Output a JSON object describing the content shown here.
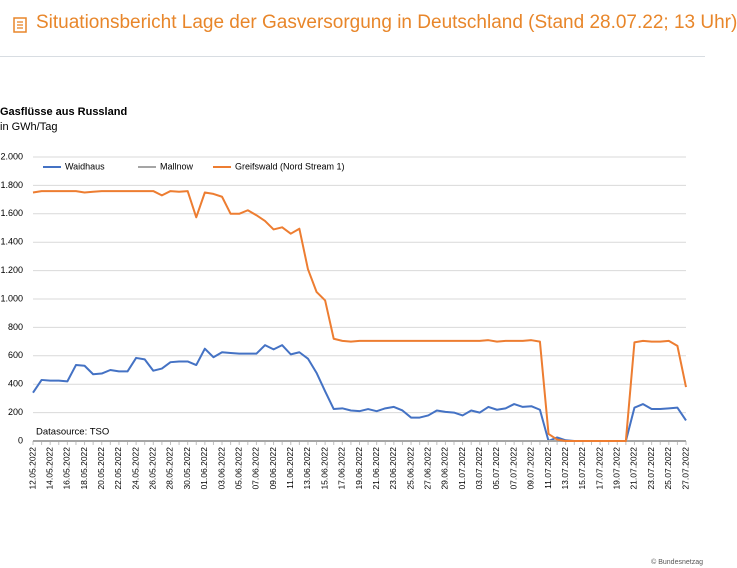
{
  "header": {
    "title": "Situationsbericht Lage der Gasversorgung in Deutschland (Stand 28.07.22; 13 Uhr)"
  },
  "footer": {
    "copyright": "© Bundesnetzag"
  },
  "chart_data": {
    "type": "line",
    "title": "Gasflüsse aus Russland",
    "subtitle": "in GWh/Tag",
    "annotation": "Datasource: TSO",
    "categories": [
      "12.05.2022",
      null,
      "14.05.2022",
      null,
      "16.05.2022",
      null,
      "18.05.2022",
      null,
      "20.05.2022",
      null,
      "22.05.2022",
      null,
      "24.05.2022",
      null,
      "26.05.2022",
      null,
      "28.05.2022",
      null,
      "30.05.2022",
      null,
      "01.06.2022",
      null,
      "03.06.2022",
      null,
      "05.06.2022",
      null,
      "07.06.2022",
      null,
      "09.06.2022",
      null,
      "11.06.2022",
      null,
      "13.06.2022",
      null,
      "15.06.2022",
      null,
      "17.06.2022",
      null,
      "19.06.2022",
      null,
      "21.06.2022",
      null,
      "23.06.2022",
      null,
      "25.06.2022",
      null,
      "27.06.2022",
      null,
      "29.06.2022",
      null,
      "01.07.2022",
      null,
      "03.07.2022",
      null,
      "05.07.2022",
      null,
      "07.07.2022",
      null,
      "09.07.2022",
      null,
      "11.07.2022",
      null,
      "13.07.2022",
      null,
      "15.07.2022",
      null,
      "17.07.2022",
      null,
      "19.07.2022",
      null,
      "21.07.2022",
      null,
      "23.07.2022",
      null,
      "25.07.2022",
      null,
      "27.07.2022"
    ],
    "series": [
      {
        "name": "Waidhaus",
        "color": "#4472c4",
        "values": [
          340,
          430,
          425,
          425,
          420,
          535,
          530,
          470,
          475,
          500,
          490,
          490,
          585,
          575,
          495,
          510,
          555,
          560,
          560,
          535,
          650,
          590,
          625,
          620,
          615,
          615,
          615,
          675,
          645,
          675,
          610,
          625,
          580,
          480,
          350,
          225,
          230,
          215,
          210,
          225,
          210,
          230,
          240,
          215,
          165,
          165,
          180,
          215,
          205,
          200,
          180,
          215,
          200,
          240,
          220,
          230,
          260,
          240,
          245,
          220,
          0,
          25,
          5,
          0,
          0,
          0,
          0,
          0,
          0,
          0,
          235,
          260,
          225,
          225,
          230,
          235,
          145
        ]
      },
      {
        "name": "Mallnow",
        "color": "#a5a5a5",
        "values": [
          0,
          0,
          0,
          0,
          0,
          0,
          0,
          0,
          0,
          0,
          0,
          0,
          0,
          0,
          0,
          0,
          0,
          0,
          0,
          0,
          0,
          0,
          0,
          0,
          0,
          0,
          0,
          0,
          0,
          0,
          0,
          0,
          0,
          0,
          0,
          0,
          0,
          0,
          0,
          0,
          0,
          0,
          0,
          0,
          0,
          0,
          0,
          0,
          0,
          0,
          0,
          0,
          0,
          0,
          0,
          0,
          0,
          0,
          0,
          0,
          0,
          0,
          0,
          0,
          0,
          0,
          0,
          0,
          0,
          0,
          0,
          0,
          0,
          0,
          0,
          0,
          0
        ]
      },
      {
        "name": "Greifswald (Nord Stream 1)",
        "color": "#ed7d31",
        "values": [
          1750,
          1760,
          1760,
          1760,
          1760,
          1760,
          1750,
          1755,
          1760,
          1760,
          1760,
          1760,
          1760,
          1760,
          1760,
          1730,
          1760,
          1755,
          1760,
          1575,
          1750,
          1740,
          1720,
          1600,
          1600,
          1625,
          1590,
          1550,
          1490,
          1505,
          1460,
          1495,
          1210,
          1050,
          990,
          720,
          705,
          700,
          705,
          705,
          705,
          705,
          705,
          705,
          705,
          705,
          705,
          705,
          705,
          705,
          705,
          705,
          705,
          710,
          700,
          705,
          705,
          705,
          710,
          700,
          50,
          10,
          0,
          0,
          0,
          0,
          0,
          0,
          0,
          0,
          695,
          705,
          700,
          700,
          705,
          670,
          380
        ]
      }
    ],
    "ylim": [
      0,
      2000
    ],
    "yticks": [
      0,
      200,
      400,
      600,
      800,
      {
        "value": 1000,
        "label": "1.000"
      },
      {
        "value": 1200,
        "label": "1.200"
      },
      {
        "value": 1400,
        "label": "1.400"
      },
      {
        "value": 1600,
        "label": "1.600"
      },
      {
        "value": 1800,
        "label": "1.800"
      },
      {
        "value": 2000,
        "label": "2.000"
      }
    ],
    "grid": true,
    "legend": "top-left"
  }
}
